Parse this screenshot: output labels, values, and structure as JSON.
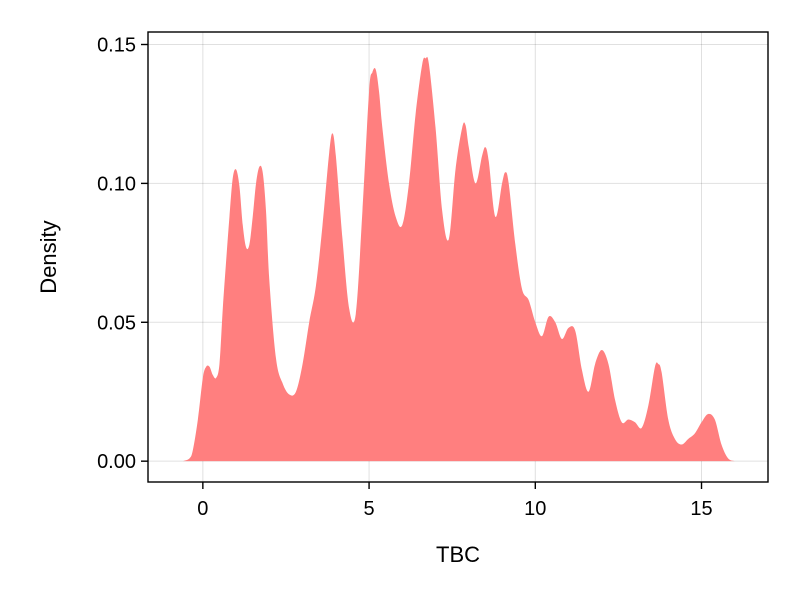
{
  "chart_data": {
    "type": "area",
    "title": "",
    "xlabel": "TBC",
    "ylabel": "Density",
    "xlim": [
      -1.65,
      17.0
    ],
    "ylim": [
      -0.0075,
      0.1545
    ],
    "xticks": [
      0,
      5,
      10,
      15
    ],
    "xtick_labels": [
      "0",
      "5",
      "10",
      "15"
    ],
    "yticks": [
      0.0,
      0.05,
      0.1,
      0.15
    ],
    "ytick_labels": [
      "0.00",
      "0.05",
      "0.10",
      "0.15"
    ],
    "grid": true,
    "legend": "none",
    "series": [
      {
        "color": "#ff7f7f",
        "x": [
          -0.6,
          -0.4,
          -0.3,
          -0.15,
          0.0,
          0.1,
          0.2,
          0.3,
          0.4,
          0.5,
          0.6,
          0.7,
          0.8,
          0.9,
          1.0,
          1.1,
          1.2,
          1.3,
          1.4,
          1.5,
          1.6,
          1.7,
          1.8,
          1.9,
          2.0,
          2.2,
          2.4,
          2.6,
          2.8,
          3.0,
          3.2,
          3.4,
          3.6,
          3.8,
          3.9,
          4.0,
          4.2,
          4.4,
          4.6,
          4.8,
          5.0,
          5.1,
          5.2,
          5.3,
          5.4,
          5.6,
          5.8,
          6.0,
          6.2,
          6.4,
          6.6,
          6.7,
          6.8,
          7.0,
          7.2,
          7.4,
          7.6,
          7.8,
          7.9,
          8.0,
          8.2,
          8.4,
          8.5,
          8.6,
          8.8,
          9.0,
          9.1,
          9.2,
          9.4,
          9.6,
          9.8,
          10.0,
          10.2,
          10.4,
          10.6,
          10.8,
          11.0,
          11.2,
          11.4,
          11.6,
          11.8,
          12.0,
          12.2,
          12.4,
          12.6,
          12.8,
          13.0,
          13.2,
          13.4,
          13.6,
          13.7,
          13.8,
          14.0,
          14.2,
          14.4,
          14.6,
          14.8,
          15.0,
          15.2,
          15.4,
          15.6,
          15.8,
          16.0
        ],
        "y": [
          0.0,
          0.001,
          0.004,
          0.015,
          0.03,
          0.034,
          0.034,
          0.031,
          0.03,
          0.035,
          0.055,
          0.072,
          0.088,
          0.102,
          0.105,
          0.099,
          0.085,
          0.077,
          0.078,
          0.088,
          0.1,
          0.106,
          0.104,
          0.09,
          0.065,
          0.037,
          0.028,
          0.024,
          0.025,
          0.035,
          0.05,
          0.063,
          0.085,
          0.111,
          0.118,
          0.11,
          0.08,
          0.055,
          0.053,
          0.09,
          0.133,
          0.14,
          0.141,
          0.133,
          0.12,
          0.1,
          0.088,
          0.085,
          0.1,
          0.125,
          0.143,
          0.145,
          0.143,
          0.12,
          0.09,
          0.08,
          0.105,
          0.12,
          0.121,
          0.113,
          0.1,
          0.11,
          0.113,
          0.108,
          0.088,
          0.1,
          0.104,
          0.1,
          0.078,
          0.062,
          0.058,
          0.05,
          0.045,
          0.052,
          0.05,
          0.044,
          0.048,
          0.047,
          0.033,
          0.025,
          0.035,
          0.04,
          0.035,
          0.022,
          0.014,
          0.015,
          0.014,
          0.012,
          0.02,
          0.034,
          0.035,
          0.032,
          0.015,
          0.008,
          0.006,
          0.008,
          0.01,
          0.014,
          0.017,
          0.015,
          0.006,
          0.001,
          0.0
        ]
      }
    ]
  }
}
